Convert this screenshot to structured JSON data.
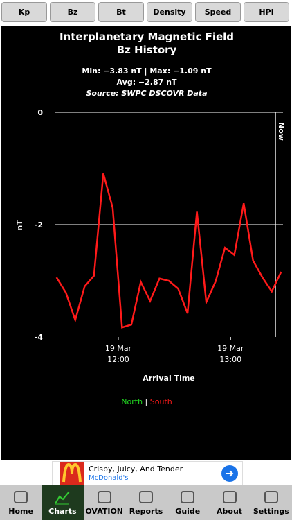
{
  "tabs": [
    "Kp",
    "Bz",
    "Bt",
    "Density",
    "Speed",
    "HPI"
  ],
  "chart_data": {
    "type": "line",
    "title": "Interplanetary Magnetic Field",
    "subtitle": "Bz History",
    "stats": [
      "Min: −3.83 nT | Max: −1.09 nT",
      "Avg: −2.87 nT"
    ],
    "source": "Source: SWPC DSCOVR Data",
    "x_label": "Arrival Time",
    "y_label": "nT",
    "x": [
      "19 Mar 11:27",
      "19 Mar 11:32",
      "19 Mar 11:37",
      "19 Mar 11:42",
      "19 Mar 11:47",
      "19 Mar 11:52",
      "19 Mar 11:57",
      "19 Mar 12:02",
      "19 Mar 12:07",
      "19 Mar 12:12",
      "19 Mar 12:17",
      "19 Mar 12:22",
      "19 Mar 12:27",
      "19 Mar 12:32",
      "19 Mar 12:37",
      "19 Mar 12:42",
      "19 Mar 12:47",
      "19 Mar 12:52",
      "19 Mar 12:57",
      "19 Mar 13:02",
      "19 Mar 13:07",
      "19 Mar 13:12",
      "19 Mar 13:17",
      "19 Mar 13:22",
      "19 Mar 13:27"
    ],
    "series": [
      {
        "name": "South",
        "color": "#ff1a1a",
        "values": [
          -2.94,
          -3.21,
          -3.7,
          -3.1,
          -2.91,
          -1.09,
          -1.7,
          -3.83,
          -3.78,
          -3.02,
          -3.36,
          -2.96,
          -3.0,
          -3.14,
          -3.58,
          -1.77,
          -3.38,
          -3.01,
          -2.41,
          -2.54,
          -1.62,
          -2.64,
          -2.94,
          -3.19,
          -2.84
        ]
      }
    ],
    "legend": [
      {
        "name": "North",
        "color": "#22dd22"
      },
      {
        "name": "South",
        "color": "#ff1a1a"
      }
    ],
    "xlim": [
      "19 Mar 11:26",
      "19 Mar 13:28"
    ],
    "xticks": [
      {
        "value": "19 Mar 12:00",
        "label": "19 Mar\n12:00"
      },
      {
        "value": "19 Mar 13:00",
        "label": "19 Mar\n13:00"
      }
    ],
    "ylim": [
      -4,
      0
    ],
    "yticks": [
      0,
      -2,
      -4
    ],
    "grid": true,
    "now": {
      "label": "Now",
      "x": "19 Mar 13:24"
    }
  },
  "ad": {
    "headline": "Crispy, Juicy, And Tender",
    "advertiser": "McDonald's"
  },
  "nav": [
    "Home",
    "Charts",
    "OVATION",
    "Reports",
    "Guide",
    "About",
    "Settings"
  ],
  "nav_selected": 1
}
